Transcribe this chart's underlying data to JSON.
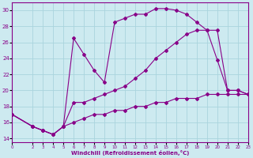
{
  "xlabel": "Windchill (Refroidissement éolien,°C)",
  "background_color": "#cdeaf0",
  "grid_color": "#aad4dd",
  "line_color": "#880088",
  "xlim": [
    0,
    23
  ],
  "ylim": [
    13.5,
    31
  ],
  "xticks": [
    0,
    2,
    3,
    4,
    5,
    6,
    7,
    8,
    9,
    10,
    11,
    12,
    13,
    14,
    15,
    16,
    17,
    18,
    19,
    20,
    21,
    22,
    23
  ],
  "yticks": [
    14,
    16,
    18,
    20,
    22,
    24,
    26,
    28,
    30
  ],
  "series": [
    {
      "x": [
        0,
        2,
        3,
        4,
        5,
        6,
        7,
        8,
        9,
        10,
        11,
        12,
        13,
        14,
        15,
        16,
        17,
        18,
        19,
        20,
        21,
        22,
        23
      ],
      "y": [
        17.0,
        15.5,
        15.0,
        14.5,
        15.5,
        16.0,
        16.5,
        17.0,
        17.0,
        17.5,
        17.5,
        18.0,
        18.0,
        18.5,
        18.5,
        19.0,
        19.0,
        19.0,
        19.5,
        19.5,
        19.5,
        19.5,
        19.5
      ]
    },
    {
      "x": [
        0,
        2,
        3,
        4,
        5,
        6,
        7,
        8,
        9,
        10,
        11,
        12,
        13,
        14,
        15,
        16,
        17,
        18,
        19,
        20,
        21,
        22,
        23
      ],
      "y": [
        17.0,
        15.5,
        15.0,
        14.5,
        15.5,
        18.5,
        18.5,
        19.0,
        19.5,
        20.0,
        20.5,
        21.5,
        22.5,
        24.0,
        25.0,
        26.0,
        27.0,
        27.5,
        27.5,
        23.8,
        20.0,
        20.0,
        19.5
      ]
    },
    {
      "x": [
        0,
        2,
        3,
        4,
        5,
        6,
        7,
        8,
        9,
        10,
        11,
        12,
        13,
        14,
        15,
        16,
        17,
        18,
        19,
        20,
        21,
        22,
        23
      ],
      "y": [
        17.0,
        15.5,
        15.0,
        14.5,
        15.5,
        26.5,
        24.5,
        22.5,
        21.0,
        28.5,
        29.0,
        29.5,
        29.5,
        30.2,
        30.2,
        30.0,
        29.5,
        28.5,
        27.5,
        27.5,
        20.0,
        20.0,
        19.5
      ]
    }
  ]
}
